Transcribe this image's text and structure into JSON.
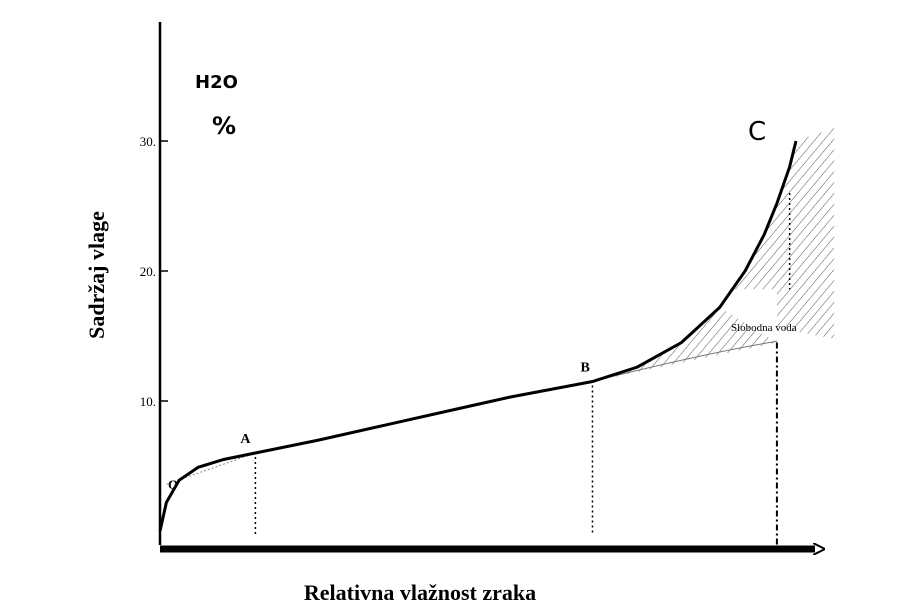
{
  "chart_data": {
    "type": "line",
    "title": "",
    "xlabel": "Relativna vlažnost zraka",
    "ylabel": "Sadržaj vlage",
    "unit_label": "H2O",
    "unit_symbol": "%",
    "ylim": [
      0,
      30
    ],
    "xlim": [
      0,
      100
    ],
    "yticks": [
      "30.",
      "20.",
      "10."
    ],
    "grid": false,
    "legend": "none",
    "colors": {
      "curve": "#000000",
      "hatch": "#555555",
      "axis": "#000000"
    },
    "points": [
      {
        "label": "O",
        "x": 0,
        "y": 0
      },
      {
        "label": "A",
        "x": 15,
        "y": 6
      },
      {
        "label": "B",
        "x": 68,
        "y": 11.5
      },
      {
        "label": "C",
        "x": 100,
        "y": 30
      }
    ],
    "annotation": "Slobodna voda",
    "series": [
      {
        "x": [
          0,
          1,
          3,
          6,
          10,
          15,
          25,
          35,
          45,
          55,
          68,
          75,
          82,
          88,
          92,
          95,
          97,
          99,
          100
        ],
        "values": [
          0,
          2.2,
          3.9,
          4.9,
          5.5,
          6,
          7,
          8.1,
          9.2,
          10.3,
          11.5,
          12.6,
          14.5,
          17.2,
          20,
          22.8,
          25.2,
          28,
          30
        ]
      }
    ]
  }
}
